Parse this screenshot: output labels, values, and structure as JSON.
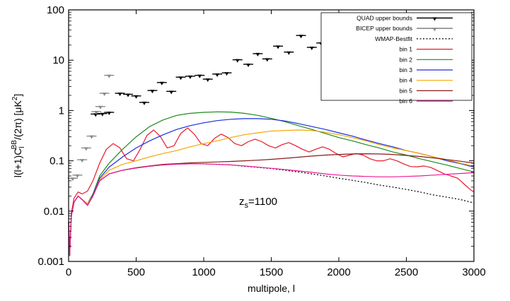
{
  "chart_data": {
    "type": "line",
    "xlabel": "multipole, l",
    "ylabel": {
      "pre": "l(l+1)C",
      "sub": "l",
      "sup": "BB",
      "post": "/(2π)   [μK",
      "unit_sup": "2",
      "close": "]"
    },
    "annotation": {
      "main": "z",
      "sub": "s",
      "rest": "=1100",
      "x": 1250,
      "y": 0.016
    },
    "xlim": [
      0,
      3000
    ],
    "ylim": [
      0.001,
      100
    ],
    "yscale": "log",
    "grid": false,
    "legend_position": "top-right",
    "xticks": [
      0,
      500,
      1000,
      1500,
      2000,
      2500,
      3000
    ],
    "xtick_labels": [
      "0",
      "500",
      "1000",
      "1500",
      "2000",
      "2500",
      "3000"
    ],
    "yticks": [
      0.001,
      0.01,
      0.1,
      1,
      10,
      100
    ],
    "ytick_labels": [
      "0.001",
      "0.01",
      "0.1",
      "1",
      "10",
      "100"
    ],
    "series": [
      {
        "name": "QUAD upper bounds",
        "kind": "upper_bounds",
        "color": "#000000",
        "points": [
          [
            200,
            0.85
          ],
          [
            250,
            0.87
          ],
          [
            300,
            0.92
          ],
          [
            380,
            2.2
          ],
          [
            440,
            2.1
          ],
          [
            500,
            1.95
          ],
          [
            560,
            1.45
          ],
          [
            620,
            2.5
          ],
          [
            690,
            3.6
          ],
          [
            760,
            2.4
          ],
          [
            830,
            4.6
          ],
          [
            900,
            4.8
          ],
          [
            970,
            5.0
          ],
          [
            1030,
            4.2
          ],
          [
            1100,
            5.3
          ],
          [
            1170,
            5.6
          ],
          [
            1250,
            10.2
          ],
          [
            1330,
            8.3
          ],
          [
            1400,
            13.5
          ],
          [
            1470,
            10.6
          ],
          [
            1550,
            19.0
          ],
          [
            1630,
            14.5
          ],
          [
            1720,
            31.0
          ],
          [
            1800,
            18.0
          ],
          [
            1870,
            22.0
          ],
          [
            1950,
            23.0
          ]
        ]
      },
      {
        "name": "BICEP upper bounds",
        "kind": "upper_bounds",
        "color": "#8a8a8a",
        "points": [
          [
            30,
            0.045
          ],
          [
            65,
            0.052
          ],
          [
            100,
            0.105
          ],
          [
            130,
            0.18
          ],
          [
            170,
            0.31
          ],
          [
            205,
            0.95
          ],
          [
            235,
            1.2
          ],
          [
            265,
            2.2
          ],
          [
            300,
            5.0
          ]
        ]
      },
      {
        "name": "WMAP-Bestfit",
        "kind": "line",
        "dashed": true,
        "color": "#000000",
        "x": [
          0,
          8,
          20,
          40,
          70,
          100,
          140,
          180,
          230,
          300,
          400,
          500,
          600,
          700,
          800,
          900,
          1000,
          1100,
          1200,
          1300,
          1400,
          1500,
          1600,
          1700,
          1800,
          1900,
          2000,
          2100,
          2200,
          2300,
          2400,
          2500,
          2600,
          2700,
          2800,
          2900,
          3000
        ],
        "y": [
          0.006,
          0.0013,
          0.008,
          0.015,
          0.02,
          0.017,
          0.013,
          0.02,
          0.04,
          0.055,
          0.065,
          0.072,
          0.078,
          0.083,
          0.086,
          0.087,
          0.087,
          0.085,
          0.083,
          0.078,
          0.074,
          0.07,
          0.065,
          0.06,
          0.055,
          0.05,
          0.045,
          0.041,
          0.037,
          0.033,
          0.03,
          0.027,
          0.024,
          0.021,
          0.019,
          0.017,
          0.0145
        ]
      },
      {
        "name": "bin 1",
        "kind": "line",
        "color": "#e8192c",
        "x": [
          0,
          8,
          20,
          40,
          70,
          100,
          140,
          180,
          230,
          280,
          330,
          380,
          430,
          480,
          530,
          580,
          630,
          680,
          730,
          780,
          830,
          880,
          930,
          980,
          1030,
          1080,
          1130,
          1180,
          1230,
          1280,
          1330,
          1380,
          1430,
          1480,
          1530,
          1580,
          1630,
          1680,
          1730,
          1780,
          1830,
          1880,
          1930,
          1980,
          2030,
          2080,
          2130,
          2180,
          2230,
          2280,
          2330,
          2380,
          2430,
          2480,
          2530,
          2580,
          2630,
          2680,
          2730,
          2780,
          2830,
          2880,
          2930,
          2980,
          3000
        ],
        "y": [
          0.006,
          0.0013,
          0.009,
          0.018,
          0.024,
          0.022,
          0.025,
          0.04,
          0.09,
          0.17,
          0.22,
          0.18,
          0.11,
          0.1,
          0.17,
          0.32,
          0.41,
          0.3,
          0.18,
          0.2,
          0.35,
          0.45,
          0.34,
          0.22,
          0.2,
          0.28,
          0.34,
          0.29,
          0.22,
          0.2,
          0.24,
          0.27,
          0.24,
          0.2,
          0.18,
          0.21,
          0.23,
          0.2,
          0.17,
          0.15,
          0.17,
          0.19,
          0.17,
          0.14,
          0.12,
          0.13,
          0.14,
          0.13,
          0.11,
          0.1,
          0.1,
          0.11,
          0.1,
          0.087,
          0.077,
          0.076,
          0.079,
          0.074,
          0.064,
          0.055,
          0.05,
          0.045,
          0.034,
          0.026,
          0.024
        ]
      },
      {
        "name": "bin 2",
        "kind": "line",
        "color": "#1d8a1d",
        "x": [
          0,
          8,
          20,
          40,
          70,
          100,
          140,
          180,
          230,
          300,
          400,
          500,
          600,
          700,
          800,
          900,
          1000,
          1100,
          1200,
          1300,
          1400,
          1500,
          1600,
          1700,
          1800,
          1900,
          2000,
          2100,
          2200,
          2300,
          2400,
          2500,
          2600,
          2700,
          2800,
          2900,
          3000
        ],
        "y": [
          0.006,
          0.0013,
          0.008,
          0.015,
          0.02,
          0.017,
          0.014,
          0.022,
          0.05,
          0.09,
          0.17,
          0.3,
          0.48,
          0.65,
          0.8,
          0.88,
          0.92,
          0.94,
          0.93,
          0.88,
          0.8,
          0.7,
          0.6,
          0.5,
          0.42,
          0.35,
          0.29,
          0.25,
          0.21,
          0.18,
          0.15,
          0.13,
          0.11,
          0.095,
          0.082,
          0.07,
          0.06
        ]
      },
      {
        "name": "bin 3",
        "kind": "line",
        "color": "#1a2ee0",
        "x": [
          0,
          8,
          20,
          40,
          70,
          100,
          140,
          180,
          230,
          300,
          400,
          500,
          600,
          700,
          800,
          900,
          1000,
          1100,
          1200,
          1300,
          1400,
          1500,
          1600,
          1700,
          1800,
          1900,
          2000,
          2100,
          2200,
          2300,
          2400,
          2500,
          2600,
          2700,
          2800,
          2900,
          3000
        ],
        "y": [
          0.006,
          0.0013,
          0.008,
          0.015,
          0.02,
          0.017,
          0.014,
          0.021,
          0.045,
          0.075,
          0.12,
          0.18,
          0.25,
          0.33,
          0.42,
          0.5,
          0.57,
          0.63,
          0.67,
          0.69,
          0.69,
          0.67,
          0.62,
          0.55,
          0.48,
          0.42,
          0.36,
          0.31,
          0.26,
          0.22,
          0.19,
          0.16,
          0.14,
          0.12,
          0.1,
          0.088,
          0.075
        ]
      },
      {
        "name": "bin 4",
        "kind": "line",
        "color": "#f5a700",
        "x": [
          0,
          8,
          20,
          40,
          70,
          100,
          140,
          180,
          230,
          300,
          400,
          500,
          600,
          700,
          800,
          900,
          1000,
          1100,
          1200,
          1300,
          1400,
          1500,
          1600,
          1700,
          1800,
          1900,
          2000,
          2100,
          2200,
          2300,
          2400,
          2500,
          2600,
          2700,
          2800,
          2900,
          3000
        ],
        "y": [
          0.006,
          0.0013,
          0.008,
          0.015,
          0.02,
          0.017,
          0.014,
          0.02,
          0.042,
          0.065,
          0.085,
          0.1,
          0.12,
          0.14,
          0.16,
          0.19,
          0.22,
          0.25,
          0.29,
          0.33,
          0.36,
          0.39,
          0.4,
          0.41,
          0.4,
          0.37,
          0.33,
          0.29,
          0.25,
          0.21,
          0.18,
          0.16,
          0.14,
          0.12,
          0.105,
          0.09,
          0.078
        ]
      },
      {
        "name": "bin 5",
        "kind": "line",
        "color": "#8b1a1a",
        "x": [
          0,
          8,
          20,
          40,
          70,
          100,
          140,
          180,
          230,
          300,
          400,
          500,
          600,
          700,
          800,
          900,
          1000,
          1100,
          1200,
          1300,
          1400,
          1500,
          1600,
          1700,
          1800,
          1900,
          2000,
          2100,
          2200,
          2300,
          2400,
          2500,
          2600,
          2700,
          2800,
          2900,
          3000
        ],
        "y": [
          0.006,
          0.0013,
          0.008,
          0.015,
          0.02,
          0.017,
          0.013,
          0.02,
          0.04,
          0.055,
          0.065,
          0.073,
          0.079,
          0.085,
          0.088,
          0.091,
          0.093,
          0.095,
          0.097,
          0.1,
          0.103,
          0.107,
          0.112,
          0.118,
          0.124,
          0.13,
          0.134,
          0.137,
          0.138,
          0.137,
          0.134,
          0.128,
          0.122,
          0.114,
          0.106,
          0.098,
          0.09
        ]
      },
      {
        "name": "bin 6",
        "kind": "line",
        "color": "#f0199a",
        "x": [
          0,
          8,
          20,
          40,
          70,
          100,
          140,
          180,
          230,
          300,
          400,
          500,
          600,
          700,
          800,
          900,
          1000,
          1100,
          1200,
          1300,
          1400,
          1500,
          1600,
          1700,
          1800,
          1900,
          2000,
          2100,
          2200,
          2300,
          2400,
          2500,
          2600,
          2700,
          2800,
          2900,
          3000
        ],
        "y": [
          0.006,
          0.0013,
          0.008,
          0.015,
          0.02,
          0.017,
          0.013,
          0.02,
          0.04,
          0.055,
          0.065,
          0.072,
          0.078,
          0.083,
          0.086,
          0.087,
          0.087,
          0.085,
          0.083,
          0.079,
          0.075,
          0.071,
          0.067,
          0.063,
          0.059,
          0.055,
          0.052,
          0.05,
          0.049,
          0.048,
          0.048,
          0.049,
          0.05,
          0.052,
          0.054,
          0.056,
          0.058
        ]
      }
    ]
  }
}
